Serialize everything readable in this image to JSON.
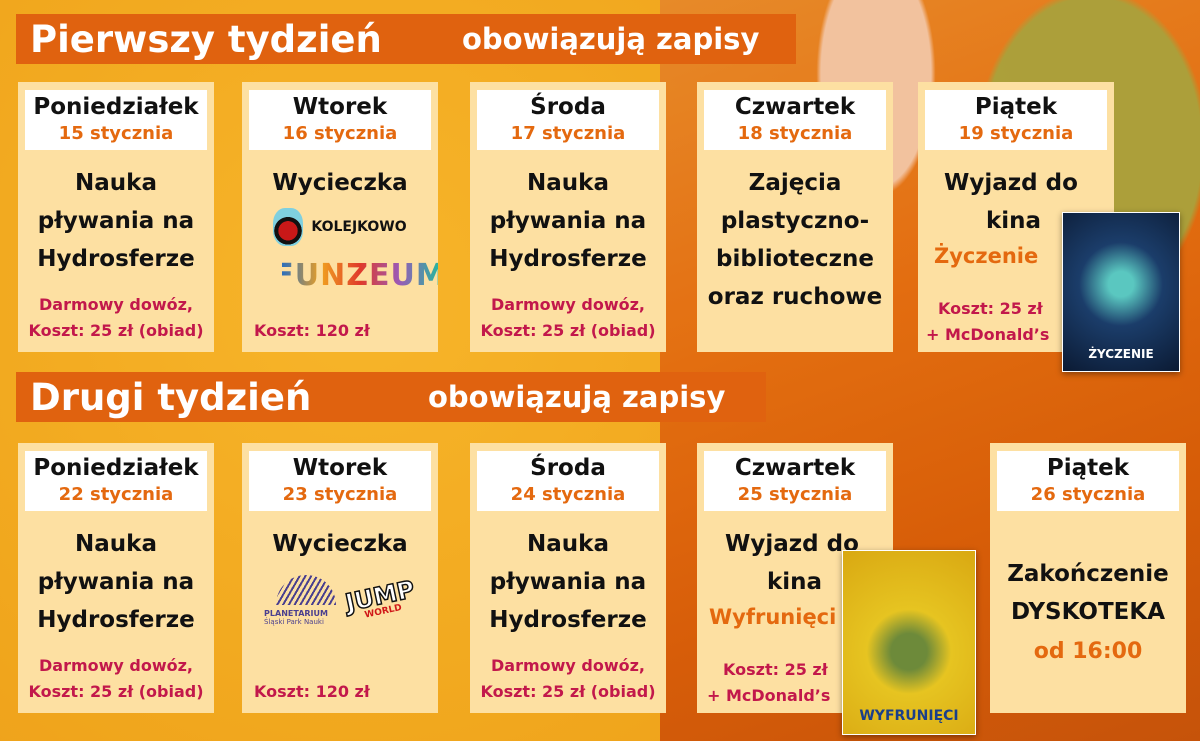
{
  "weeks": [
    {
      "title": "Pierwszy tydzień",
      "note": "obowiązują zapisy",
      "days": [
        {
          "day": "Poniedziałek",
          "date": "15 stycznia",
          "activity": [
            "Nauka",
            "pływania na",
            "Hydrosferze"
          ],
          "cost": [
            "Darmowy dowóz,",
            "Koszt: 25 zł (obiad)"
          ]
        },
        {
          "day": "Wtorek",
          "date": "16 stycznia",
          "activity": [
            "Wycieczka"
          ],
          "logos": [
            "KOLEJKOWO",
            "FUNZEUM"
          ],
          "cost": [
            "Koszt: 120 zł"
          ]
        },
        {
          "day": "Środa",
          "date": "17 stycznia",
          "activity": [
            "Nauka",
            "pływania na",
            "Hydrosferze"
          ],
          "cost": [
            "Darmowy dowóz,",
            "Koszt: 25 zł (obiad)"
          ]
        },
        {
          "day": "Czwartek",
          "date": "18 stycznia",
          "activity": [
            "Zajęcia",
            "plastyczno-",
            "biblioteczne",
            "oraz ruchowe"
          ]
        },
        {
          "day": "Piątek",
          "date": "19 stycznia",
          "activity": [
            "Wyjazd do",
            "kina"
          ],
          "film": "Życzenie",
          "cost": [
            "Koszt: 25 zł",
            "+ McDonald’s"
          ],
          "poster": "ŻYCZENIE"
        }
      ]
    },
    {
      "title": "Drugi tydzień",
      "note": "obowiązują zapisy",
      "days": [
        {
          "day": "Poniedziałek",
          "date": "22 stycznia",
          "activity": [
            "Nauka",
            "pływania na",
            "Hydrosferze"
          ],
          "cost": [
            "Darmowy dowóz,",
            "Koszt: 25 zł (obiad)"
          ]
        },
        {
          "day": "Wtorek",
          "date": "23 stycznia",
          "activity": [
            "Wycieczka"
          ],
          "logos": [
            "PLANETARIUM",
            "Śląski Park Nauki",
            "JUMP",
            "WORLD"
          ],
          "cost": [
            "Koszt: 120 zł"
          ]
        },
        {
          "day": "Środa",
          "date": "24 stycznia",
          "activity": [
            "Nauka",
            "pływania na",
            "Hydrosferze"
          ],
          "cost": [
            "Darmowy dowóz,",
            "Koszt: 25 zł (obiad)"
          ]
        },
        {
          "day": "Czwartek",
          "date": "25 stycznia",
          "activity": [
            "Wyjazd do",
            "kina"
          ],
          "film": "Wyfrunięci",
          "cost": [
            "Koszt: 25 zł",
            "+ McDonald’s"
          ],
          "poster": "WYFRUNIĘCI"
        },
        {
          "day": "Piątek",
          "date": "26 stycznia",
          "activity": [
            "Zakończenie",
            "DYSKOTEKA"
          ],
          "time": "od 16:00"
        }
      ]
    }
  ],
  "colors": {
    "banner": "#e0620f",
    "card": "#fde0a2",
    "date": "#e4690f",
    "cost": "#c2184b"
  }
}
